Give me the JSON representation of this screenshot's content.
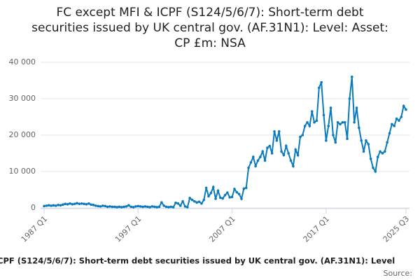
{
  "chart_data": {
    "type": "line",
    "title": [
      "FC except MFI & ICPF (S124/5/6/7): Short-term debt",
      "securities issued by UK central gov. (AF.31N1): Level: Asset:",
      "CP £m: NSA"
    ],
    "x_axis_label": "CPF (S124/5/6/7): Short-term debt securities issued by UK central gov. (AF.31N1): Level",
    "source": "Source:",
    "categories": [
      "1987 Q1",
      null,
      null,
      null,
      null,
      null,
      null,
      null,
      null,
      null,
      null,
      null,
      null,
      null,
      null,
      null,
      null,
      null,
      null,
      null,
      null,
      null,
      null,
      null,
      null,
      null,
      null,
      null,
      null,
      null,
      null,
      null,
      null,
      null,
      null,
      null,
      null,
      null,
      null,
      null,
      "1997 Q1",
      null,
      null,
      null,
      null,
      null,
      null,
      null,
      null,
      null,
      null,
      null,
      null,
      null,
      null,
      null,
      null,
      null,
      null,
      null,
      null,
      null,
      null,
      null,
      null,
      null,
      null,
      null,
      null,
      null,
      null,
      null,
      null,
      null,
      null,
      null,
      null,
      null,
      null,
      null,
      "2007 Q1",
      null,
      null,
      null,
      null,
      null,
      null,
      null,
      null,
      null,
      null,
      null,
      null,
      null,
      null,
      null,
      null,
      null,
      null,
      null,
      null,
      null,
      null,
      null,
      null,
      null,
      null,
      null,
      null,
      null,
      null,
      null,
      null,
      null,
      null,
      null,
      null,
      null,
      null,
      null,
      "2017 Q1",
      null,
      null,
      null,
      null,
      null,
      null,
      null,
      null,
      null,
      null,
      null,
      null,
      null,
      null,
      null,
      null,
      null,
      null,
      null,
      null,
      null,
      null,
      null,
      null,
      null,
      null,
      null,
      null,
      null,
      null,
      null,
      null,
      null,
      "2025 Q3"
    ],
    "series": [
      {
        "name": "Level",
        "color": "#0b7bbd",
        "values": [
          500,
          600,
          700,
          600,
          700,
          600,
          800,
          700,
          900,
          1100,
          1000,
          1200,
          1000,
          1100,
          1300,
          1100,
          1200,
          1100,
          1000,
          1200,
          900,
          800,
          600,
          500,
          400,
          600,
          500,
          300,
          400,
          300,
          300,
          200,
          300,
          200,
          300,
          400,
          700,
          300,
          200,
          400,
          500,
          400,
          300,
          400,
          300,
          200,
          400,
          300,
          200,
          300,
          1500,
          600,
          300,
          200,
          300,
          200,
          1400,
          1200,
          600,
          1800,
          400,
          200,
          2700,
          2200,
          1800,
          1500,
          1700,
          1200,
          2200,
          5500,
          3200,
          4100,
          5700,
          2500,
          4700,
          2800,
          2600,
          3500,
          4200,
          2900,
          3000,
          5200,
          4300,
          3800,
          2500,
          5300,
          5500,
          11000,
          12500,
          14000,
          11500,
          13000,
          14000,
          15500,
          13000,
          16500,
          17000,
          15000,
          21000,
          18500,
          21000,
          15500,
          14500,
          17000,
          15000,
          13000,
          11500,
          16000,
          14500,
          19500,
          20000,
          22500,
          23500,
          22500,
          26500,
          23500,
          24000,
          33000,
          34500,
          25500,
          18500,
          22500,
          27500,
          20000,
          18000,
          23500,
          23000,
          23500,
          23500,
          19000,
          30000,
          36000,
          23500,
          27500,
          22000,
          18500,
          15500,
          18500,
          17500,
          13500,
          11000,
          10000,
          14000,
          15500,
          15000,
          15500,
          18000,
          20500,
          23000,
          22500,
          24500,
          24000,
          25000,
          28000,
          27000
        ]
      }
    ],
    "ylim": [
      0,
      40000
    ],
    "yticks": [
      0,
      {
        "value": 10000,
        "label": "10 000"
      },
      {
        "value": 20000,
        "label": "20 000"
      },
      {
        "value": 30000,
        "label": "30 000"
      },
      {
        "value": 40000,
        "label": "40 000"
      }
    ],
    "grid": true
  }
}
